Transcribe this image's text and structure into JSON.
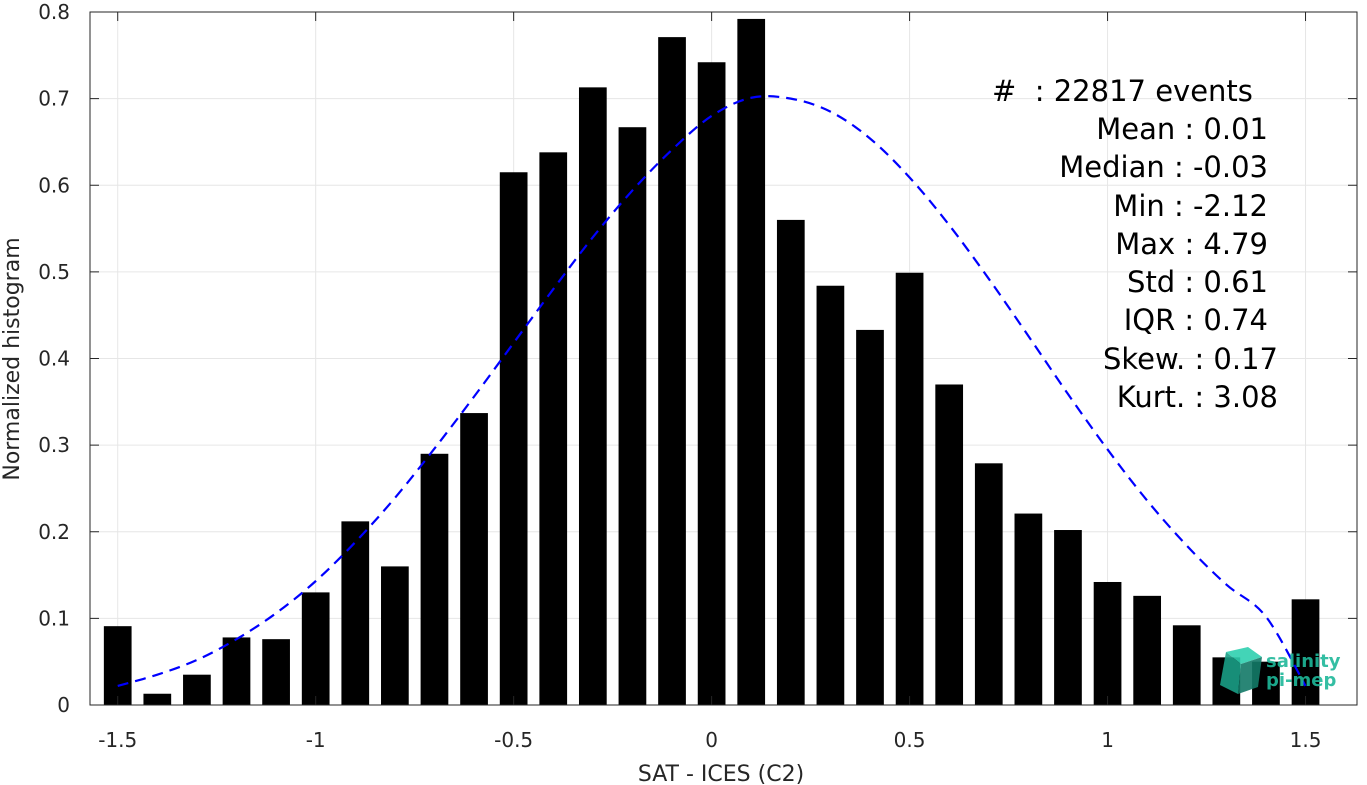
{
  "chart_data": {
    "type": "bar",
    "xlabel": "SAT - ICES (C2)",
    "ylabel": "Normalized histogram",
    "xlim": [
      -1.57,
      1.63
    ],
    "ylim": [
      0,
      0.8
    ],
    "xticks": [
      -1.5,
      -1,
      -0.5,
      0,
      0.5,
      1,
      1.5
    ],
    "xtick_labels": [
      "-1.5",
      "-1",
      "-0.5",
      "0",
      "0.5",
      "1",
      "1.5"
    ],
    "yticks": [
      0,
      0.1,
      0.2,
      0.3,
      0.4,
      0.5,
      0.6,
      0.7,
      0.8
    ],
    "ytick_labels": [
      "0",
      "0.1",
      "0.2",
      "0.3",
      "0.4",
      "0.5",
      "0.6",
      "0.7",
      "0.8"
    ],
    "grid": true,
    "bar_color": "#000000",
    "bars": {
      "x": [
        -1.5,
        -1.4,
        -1.3,
        -1.2,
        -1.1,
        -1.0,
        -0.9,
        -0.8,
        -0.7,
        -0.6,
        -0.5,
        -0.4,
        -0.3,
        -0.2,
        -0.1,
        0.0,
        0.1,
        0.2,
        0.3,
        0.4,
        0.5,
        0.6,
        0.7,
        0.8,
        0.9,
        1.0,
        1.1,
        1.2,
        1.3,
        1.4,
        1.5
      ],
      "values": [
        0.091,
        0.013,
        0.035,
        0.078,
        0.076,
        0.13,
        0.212,
        0.16,
        0.29,
        0.337,
        0.615,
        0.638,
        0.713,
        0.667,
        0.771,
        0.742,
        0.792,
        0.56,
        0.484,
        0.433,
        0.499,
        0.37,
        0.279,
        0.221,
        0.202,
        0.142,
        0.126,
        0.092,
        0.055,
        0.05,
        0.122
      ]
    },
    "fit_curve": {
      "style": "dashed",
      "color": "#0000ff",
      "x": [
        -1.5,
        -1.4,
        -1.3,
        -1.2,
        -1.1,
        -1.0,
        -0.9,
        -0.8,
        -0.7,
        -0.6,
        -0.5,
        -0.4,
        -0.3,
        -0.2,
        -0.1,
        0.0,
        0.1,
        0.2,
        0.3,
        0.4,
        0.5,
        0.6,
        0.7,
        0.8,
        0.9,
        1.0,
        1.1,
        1.2,
        1.3,
        1.4,
        1.5
      ],
      "y": [
        0.022,
        0.035,
        0.052,
        0.076,
        0.106,
        0.143,
        0.188,
        0.239,
        0.296,
        0.356,
        0.418,
        0.48,
        0.54,
        0.594,
        0.641,
        0.68,
        0.701,
        0.7,
        0.685,
        0.654,
        0.609,
        0.554,
        0.492,
        0.426,
        0.359,
        0.295,
        0.236,
        0.184,
        0.139,
        0.102,
        0.022
      ]
    },
    "annotations": [
      "#  : 22817 events",
      "Mean : 0.01",
      "Median : -0.03",
      "Min : -2.12",
      "Max : 4.79",
      "Std : 0.61",
      "IQR : 0.74",
      "Skew. : 0.17",
      "Kurt. : 3.08"
    ]
  },
  "logo": {
    "line1": "salinity",
    "line2": "pi-mep",
    "color": "#1fb89a"
  }
}
